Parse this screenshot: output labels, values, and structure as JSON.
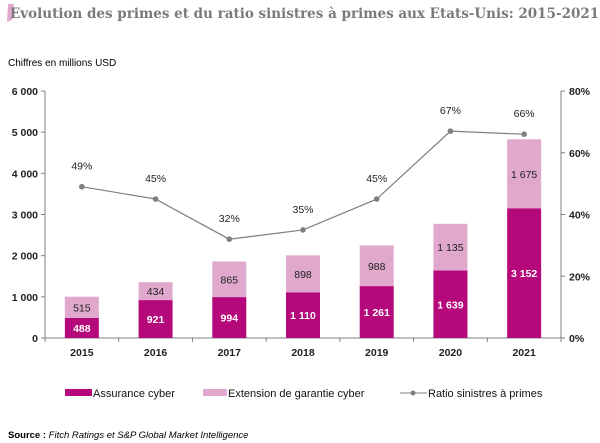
{
  "title": "Evolution des primes et du ratio sinistres à primes aux Etats-Unis: 2015-2021",
  "unit_note": "Chiffres en millions  USD",
  "source_label": "Source :",
  "source_text": "Fitch Ratings et S&P Global Market Intelligence",
  "chart_data": {
    "type": "bar",
    "stacked": true,
    "categories": [
      "2015",
      "2016",
      "2017",
      "2018",
      "2019",
      "2020",
      "2021"
    ],
    "series": [
      {
        "name": "Assurance cyber",
        "color": "#b5087a",
        "values": [
          488,
          921,
          994,
          1110,
          1261,
          1639,
          3152
        ],
        "labels": [
          "488",
          "921",
          "994",
          "1 110",
          "1 261",
          "1 639",
          "3 152"
        ]
      },
      {
        "name": "Extension de garantie cyber",
        "color": "#dfa8cc",
        "values": [
          515,
          434,
          865,
          898,
          988,
          1135,
          1675
        ],
        "labels": [
          "515",
          "434",
          "865",
          "898",
          "988",
          "1 135",
          "1 675"
        ]
      },
      {
        "name": "Ratio sinistres à primes",
        "type": "line",
        "axis": "right",
        "color": "#7f7f7f",
        "values": [
          49,
          45,
          32,
          35,
          45,
          67,
          66
        ],
        "labels": [
          "49%",
          "45%",
          "32%",
          "35%",
          "45%",
          "67%",
          "66%"
        ]
      }
    ],
    "ylim": [
      0,
      6000
    ],
    "yticks": [
      "0",
      "1 000",
      "2 000",
      "3 000",
      "4 000",
      "5 000",
      "6 000"
    ],
    "y2lim": [
      0,
      80
    ],
    "y2ticks": [
      "0%",
      "20%",
      "40%",
      "60%",
      "80%"
    ],
    "grid": false,
    "legend": "bottom"
  }
}
